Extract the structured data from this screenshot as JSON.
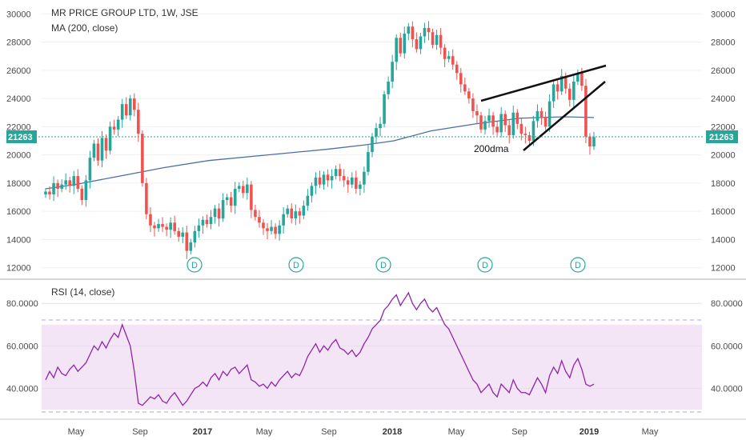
{
  "chart_data": [
    {
      "type": "candlestick",
      "title": "MR PRICE GROUP LTD, 1W, JSE",
      "overlay_label": "MA (200, close)",
      "last_price_label": "21263",
      "last_price": 21263,
      "yticks": [
        "30000",
        "28000",
        "26000",
        "24000",
        "22000",
        "20000",
        "18000",
        "16000",
        "14000",
        "12000"
      ],
      "ylim": [
        11700,
        30300
      ],
      "xlabels": [
        "May",
        "Sep",
        "2017",
        "May",
        "Sep",
        "2018",
        "May",
        "Sep",
        "2019",
        "May"
      ],
      "colors": {
        "up": "#26a69a",
        "down": "#ef5350",
        "ma": "#4a6fa5",
        "rsi": "#8e24aa",
        "rsi_band": "#f3e5f5"
      },
      "close_series": [
        17400,
        17200,
        18000,
        17600,
        17900,
        18200,
        17800,
        18500,
        17600,
        16800,
        18200,
        19800,
        20800,
        19600,
        21200,
        20300,
        22000,
        21800,
        22500,
        23600,
        22800,
        24000,
        23200,
        21500,
        18000,
        15800,
        15000,
        14800,
        15100,
        14900,
        14700,
        15200,
        14600,
        14200,
        14500,
        13200,
        13800,
        14600,
        15000,
        15400,
        15100,
        15600,
        16200,
        15500,
        16800,
        17000,
        16400,
        17600,
        17800,
        17300,
        17900,
        16100,
        15600,
        15200,
        14800,
        14600,
        14900,
        14400,
        15000,
        15800,
        16200,
        15500,
        16000,
        15700,
        16400,
        17100,
        17800,
        18400,
        17900,
        18600,
        18200,
        18500,
        19000,
        18500,
        18200,
        17900,
        18400,
        17600,
        17900,
        18800,
        20200,
        21300,
        21900,
        22200,
        24300,
        25200,
        26600,
        28300,
        27200,
        28600,
        29100,
        28200,
        27500,
        28400,
        29000,
        28700,
        27800,
        28500,
        27600,
        26800,
        27000,
        26400,
        25800,
        25000,
        24500,
        24000,
        23100,
        22800,
        21800,
        22400,
        22800,
        22000,
        21600,
        22900,
        22100,
        21400,
        23000,
        22200,
        21500,
        21400,
        21000,
        22400,
        23100,
        22700,
        22000,
        23800,
        25000,
        24500,
        25600,
        24700,
        23900,
        25200,
        25800,
        24900,
        21300,
        20600,
        21263
      ],
      "ma_series": [
        [
          0,
          17600
        ],
        [
          40,
          17900
        ],
        [
          100,
          18500
        ],
        [
          160,
          19100
        ],
        [
          220,
          19600
        ],
        [
          300,
          20000
        ],
        [
          380,
          20400
        ],
        [
          430,
          20700
        ],
        [
          470,
          21000
        ],
        [
          520,
          21700
        ],
        [
          580,
          22200
        ],
        [
          640,
          22600
        ],
        [
          700,
          22700
        ],
        [
          740,
          22650
        ]
      ],
      "dividend_marker_label": "D",
      "dividend_markers_x_months": [
        "2016-08",
        "2017-02",
        "2017-08",
        "2018-03",
        "2018-09"
      ],
      "trendlines_label": "200dma",
      "panel2": {
        "title": "RSI (14, close)",
        "yticks": [
          "80.0000",
          "60.0000",
          "40.0000"
        ],
        "ylim": [
          27,
          88
        ],
        "band": [
          30,
          70
        ],
        "values": [
          44,
          48,
          45,
          50,
          47,
          46,
          49,
          51,
          48,
          50,
          52,
          56,
          60,
          58,
          62,
          59,
          63,
          66,
          64,
          70,
          65,
          60,
          48,
          33,
          32,
          34,
          36,
          35,
          37,
          34,
          33,
          36,
          38,
          35,
          32,
          34,
          37,
          40,
          41,
          43,
          41,
          45,
          47,
          44,
          48,
          46,
          49,
          50,
          47,
          49,
          51,
          44,
          43,
          41,
          42,
          40,
          43,
          41,
          44,
          46,
          48,
          45,
          47,
          46,
          50,
          55,
          58,
          61,
          57,
          60,
          58,
          61,
          63,
          59,
          58,
          56,
          58,
          55,
          57,
          61,
          64,
          68,
          70,
          72,
          77,
          79,
          82,
          84,
          79,
          82,
          85,
          80,
          77,
          80,
          82,
          78,
          76,
          78,
          74,
          70,
          68,
          64,
          60,
          56,
          52,
          48,
          44,
          42,
          38,
          40,
          42,
          38,
          36,
          42,
          40,
          38,
          44,
          40,
          38,
          38,
          37,
          41,
          45,
          42,
          38,
          46,
          50,
          47,
          53,
          48,
          45,
          51,
          54,
          49,
          42,
          41,
          42
        ]
      }
    }
  ]
}
